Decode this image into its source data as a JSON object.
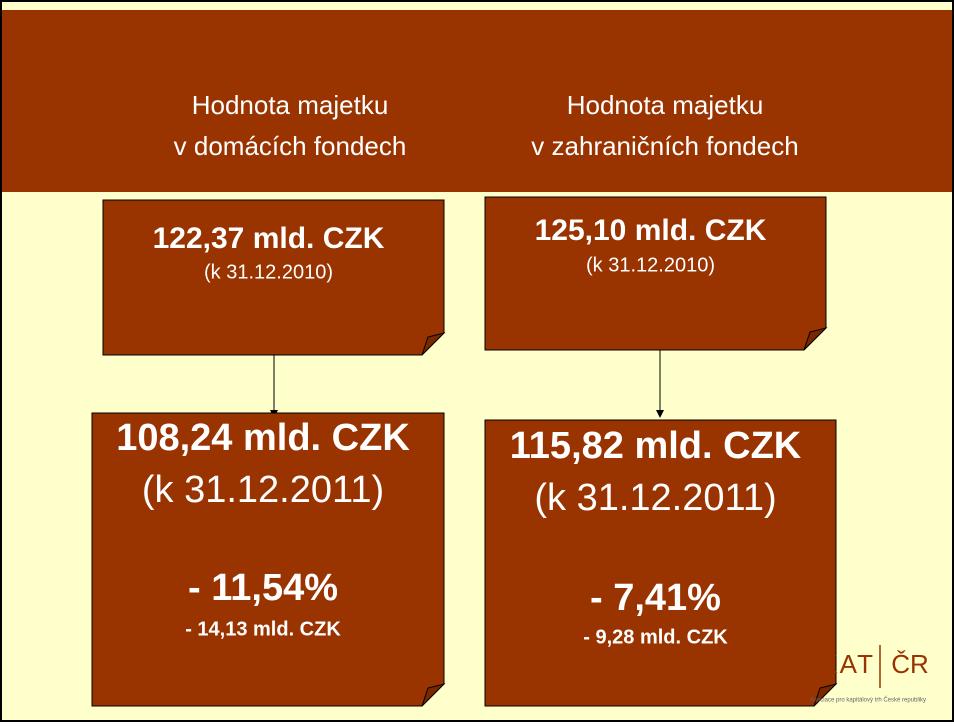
{
  "columns": [
    {
      "header": [
        "Hodnota majetku",
        "v domácích fondech"
      ],
      "before": {
        "amount": "122,37 mld. CZK",
        "date": "(k 31.12.2010)"
      },
      "after": {
        "amount": "108,24 mld. CZK",
        "date": "(k 31.12.2011)",
        "change": "- 11,54%",
        "change_amount": "- 14,13 mld. CZK"
      }
    },
    {
      "header": [
        "Hodnota majetku",
        "v zahraničních fondech"
      ],
      "before": {
        "amount": "125,10 mld. CZK",
        "date": "(k 31.12.2010)"
      },
      "after": {
        "amount": "115,82 mld. CZK",
        "date": "(k 31.12.2011)",
        "change": "- 7,41%",
        "change_amount": "- 9,28 mld. CZK"
      }
    }
  ],
  "logo": {
    "left": "AKAT",
    "right": "ČR",
    "tagline": "Asociace pro kapitálový trh České republiky"
  }
}
